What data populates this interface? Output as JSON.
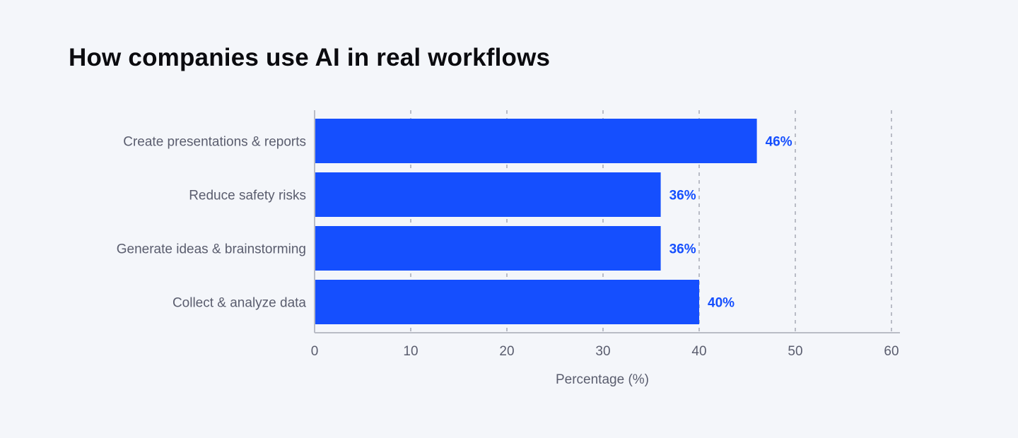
{
  "chart_data": {
    "type": "bar",
    "orientation": "horizontal",
    "title": "How companies use AI in real workflows",
    "categories": [
      "Create presentations & reports",
      "Reduce safety risks",
      "Generate ideas & brainstorming",
      "Collect & analyze data"
    ],
    "values": [
      46,
      36,
      36,
      40
    ],
    "data_labels": [
      "46%",
      "36%",
      "36%",
      "40%"
    ],
    "xlabel": "Percentage (%)",
    "ylabel": "",
    "xlim": [
      0,
      60
    ],
    "xticks": [
      0,
      10,
      20,
      30,
      40,
      50,
      60
    ],
    "grid": "vertical dashed",
    "legend": "none",
    "colors": {
      "bar": "#154ffe",
      "background": "#f4f6fa",
      "grid": "#b9bcc6"
    }
  }
}
